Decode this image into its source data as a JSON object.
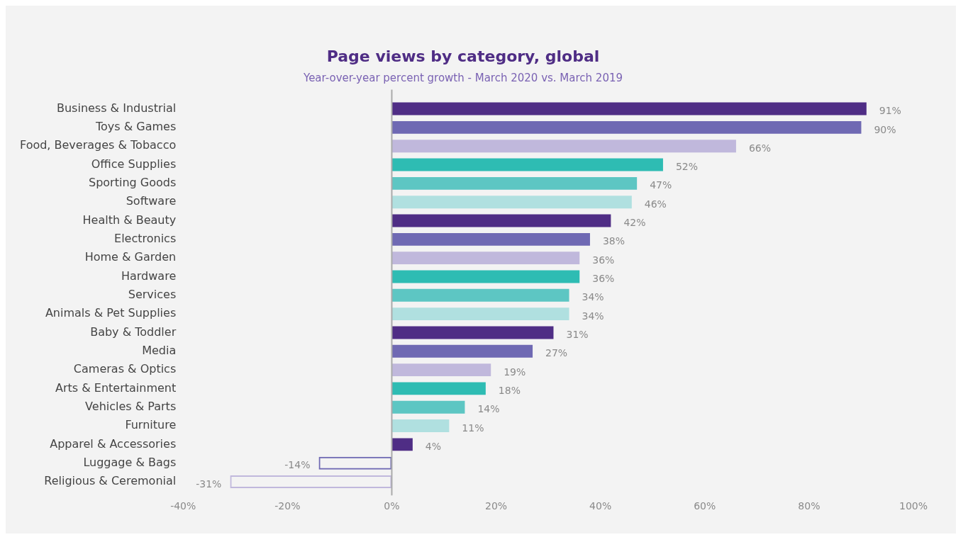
{
  "chart_data": {
    "type": "bar",
    "orientation": "horizontal",
    "title": "Page views by category, global",
    "subtitle": "Year-over-year percent growth - March 2020 vs. March 2019",
    "categories": [
      "Business & Industrial",
      "Toys & Games",
      "Food, Beverages & Tobacco",
      "Office Supplies",
      "Sporting Goods",
      "Software",
      "Health & Beauty",
      "Electronics",
      "Home & Garden",
      "Hardware",
      "Services",
      "Animals & Pet Supplies",
      "Baby & Toddler",
      "Media",
      "Cameras & Optics",
      "Arts & Entertainment",
      "Vehicles & Parts",
      "Furniture",
      "Apparel & Accessories",
      "Luggage & Bags",
      "Religious & Ceremonial"
    ],
    "values": [
      91,
      90,
      66,
      52,
      47,
      46,
      42,
      38,
      36,
      36,
      34,
      34,
      31,
      27,
      19,
      18,
      14,
      11,
      4,
      -14,
      -31
    ],
    "colors": [
      "#4f2d85",
      "#6f69b3",
      "#c0b8dc",
      "#2ebcb3",
      "#5dc6c3",
      "#b0e0e0",
      "#4f2d85",
      "#6f69b3",
      "#c0b8dc",
      "#2ebcb3",
      "#5dc6c3",
      "#b0e0e0",
      "#4f2d85",
      "#6f69b3",
      "#c0b8dc",
      "#2ebcb3",
      "#5dc6c3",
      "#b0e0e0",
      "#4f2d85",
      "#6f69b3",
      "#c0b8dc"
    ],
    "value_labels": [
      "91%",
      "90%",
      "66%",
      "52%",
      "47%",
      "46%",
      "42%",
      "38%",
      "36%",
      "36%",
      "34%",
      "34%",
      "31%",
      "27%",
      "19%",
      "18%",
      "14%",
      "11%",
      "4%",
      "-14%",
      "-31%"
    ],
    "xlim": [
      -40,
      100
    ],
    "xticks": [
      {
        "value": -40,
        "label": "-40%"
      },
      {
        "value": -20,
        "label": "-20%"
      },
      {
        "value": 0,
        "label": "0%"
      },
      {
        "value": 20,
        "label": "20%"
      },
      {
        "value": 40,
        "label": "40%"
      },
      {
        "value": 60,
        "label": "60%"
      },
      {
        "value": 80,
        "label": "80%"
      },
      {
        "value": 100,
        "label": "100%"
      }
    ],
    "ref_lines": [
      {
        "axis": "x",
        "value": 0,
        "color": "#aaaaaa"
      }
    ],
    "grid": false,
    "legend": false
  }
}
